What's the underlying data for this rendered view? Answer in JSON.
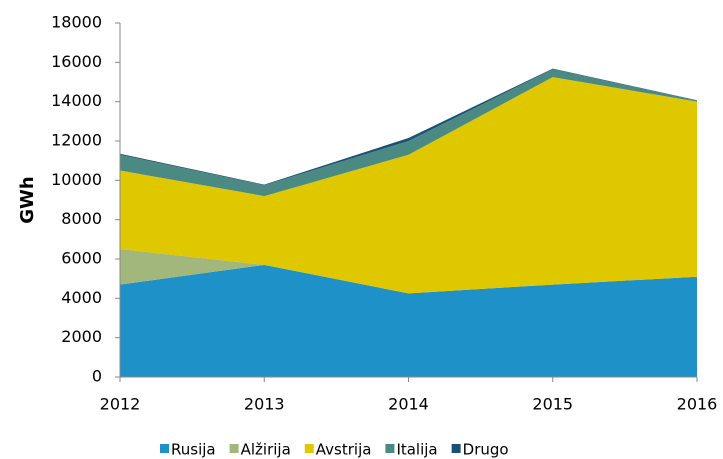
{
  "chart_data": {
    "type": "area",
    "stacked": true,
    "y_label": "GWh",
    "x": [
      2012,
      2013,
      2014,
      2015,
      2016
    ],
    "xlim": [
      2012,
      2016
    ],
    "xticks": [
      2012,
      2013,
      2014,
      2015,
      2016
    ],
    "ylim": [
      0,
      18000
    ],
    "yticks": [
      0,
      2000,
      4000,
      6000,
      8000,
      10000,
      12000,
      14000,
      16000,
      18000
    ],
    "grid": false,
    "legend": "bottom",
    "series": [
      {
        "name": "Rusija",
        "color": "#1f91c9",
        "values": [
          4700,
          5700,
          4250,
          4700,
          5100
        ]
      },
      {
        "name": "Alžirija",
        "color": "#a2b77c",
        "values": [
          1800,
          0,
          0,
          0,
          0
        ]
      },
      {
        "name": "Avstrija",
        "color": "#dfc800",
        "values": [
          4000,
          3500,
          7050,
          10550,
          8900
        ]
      },
      {
        "name": "Italija",
        "color": "#4a8a82",
        "values": [
          800,
          550,
          700,
          400,
          50
        ]
      },
      {
        "name": "Drugo",
        "color": "#1a5073",
        "values": [
          50,
          30,
          150,
          30,
          20
        ]
      }
    ]
  }
}
